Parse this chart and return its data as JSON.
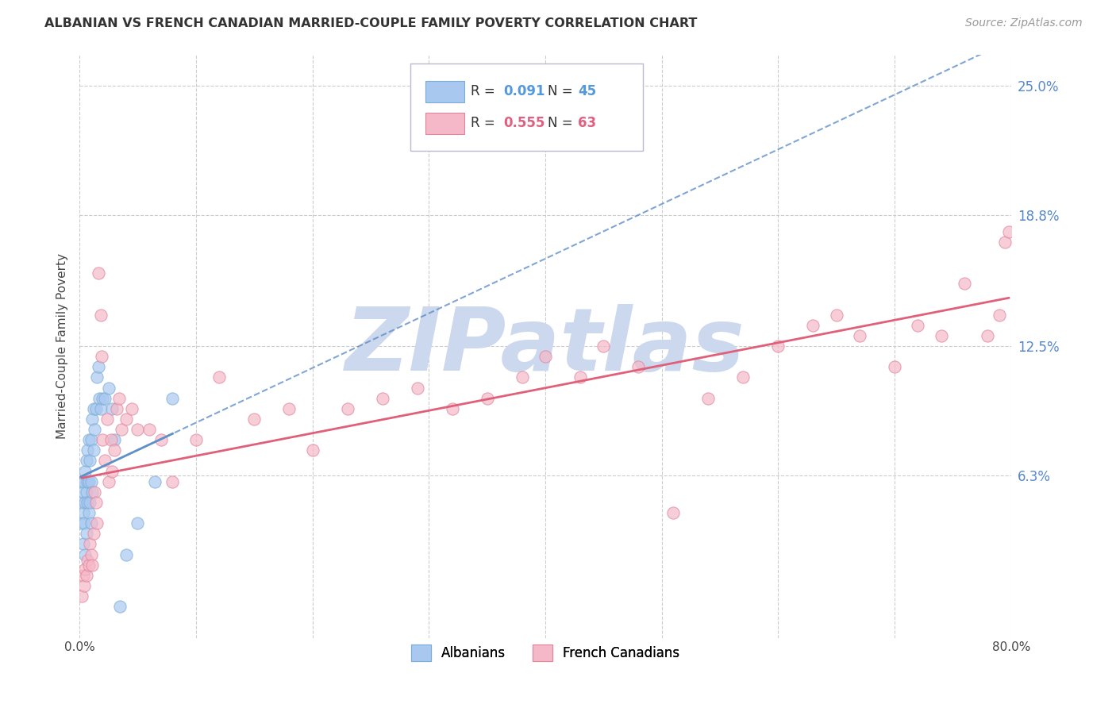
{
  "title": "ALBANIAN VS FRENCH CANADIAN MARRIED-COUPLE FAMILY POVERTY CORRELATION CHART",
  "source": "Source: ZipAtlas.com",
  "ylabel": "Married-Couple Family Poverty",
  "xlim": [
    0,
    0.8
  ],
  "ylim": [
    -0.015,
    0.265
  ],
  "yticks": [
    0.063,
    0.125,
    0.188,
    0.25
  ],
  "ytick_labels": [
    "6.3%",
    "12.5%",
    "18.8%",
    "25.0%"
  ],
  "xticks": [
    0.0,
    0.1,
    0.2,
    0.3,
    0.4,
    0.5,
    0.6,
    0.7,
    0.8
  ],
  "xtick_labels": [
    "0.0%",
    "",
    "",
    "",
    "",
    "",
    "",
    "",
    "80.0%"
  ],
  "albanian_color": "#a8c8f0",
  "albanian_edge": "#7badd4",
  "french_color": "#f5b8c8",
  "french_edge": "#e0849c",
  "albanian_line_color": "#6090c8",
  "french_line_color": "#e0607a",
  "albanian_R": 0.091,
  "albanian_N": 45,
  "french_R": 0.555,
  "french_N": 63,
  "watermark": "ZIPatlas",
  "watermark_color": "#ccd8ee",
  "legend_label_albanian": "Albanians",
  "legend_label_french": "French Canadians",
  "albanian_scatter_x": [
    0.001,
    0.002,
    0.002,
    0.003,
    0.003,
    0.003,
    0.004,
    0.004,
    0.005,
    0.005,
    0.005,
    0.006,
    0.006,
    0.006,
    0.007,
    0.007,
    0.007,
    0.008,
    0.008,
    0.008,
    0.009,
    0.009,
    0.01,
    0.01,
    0.01,
    0.011,
    0.011,
    0.012,
    0.012,
    0.013,
    0.014,
    0.015,
    0.016,
    0.017,
    0.018,
    0.02,
    0.022,
    0.025,
    0.028,
    0.03,
    0.035,
    0.04,
    0.05,
    0.065,
    0.08
  ],
  "albanian_scatter_y": [
    0.04,
    0.05,
    0.06,
    0.03,
    0.045,
    0.055,
    0.04,
    0.06,
    0.025,
    0.05,
    0.065,
    0.035,
    0.055,
    0.07,
    0.05,
    0.06,
    0.075,
    0.045,
    0.06,
    0.08,
    0.05,
    0.07,
    0.04,
    0.06,
    0.08,
    0.055,
    0.09,
    0.075,
    0.095,
    0.085,
    0.095,
    0.11,
    0.115,
    0.1,
    0.095,
    0.1,
    0.1,
    0.105,
    0.095,
    0.08,
    0.0,
    0.025,
    0.04,
    0.06,
    0.1
  ],
  "french_scatter_x": [
    0.002,
    0.003,
    0.004,
    0.005,
    0.006,
    0.007,
    0.008,
    0.009,
    0.01,
    0.011,
    0.012,
    0.013,
    0.014,
    0.015,
    0.016,
    0.018,
    0.019,
    0.02,
    0.022,
    0.024,
    0.025,
    0.027,
    0.028,
    0.03,
    0.032,
    0.034,
    0.036,
    0.04,
    0.045,
    0.05,
    0.06,
    0.07,
    0.08,
    0.1,
    0.12,
    0.15,
    0.18,
    0.2,
    0.23,
    0.26,
    0.29,
    0.32,
    0.35,
    0.38,
    0.4,
    0.43,
    0.45,
    0.48,
    0.51,
    0.54,
    0.57,
    0.6,
    0.63,
    0.65,
    0.67,
    0.7,
    0.72,
    0.74,
    0.76,
    0.78,
    0.79,
    0.795,
    0.798
  ],
  "french_scatter_y": [
    0.005,
    0.015,
    0.01,
    0.018,
    0.015,
    0.022,
    0.02,
    0.03,
    0.025,
    0.02,
    0.035,
    0.055,
    0.05,
    0.04,
    0.16,
    0.14,
    0.12,
    0.08,
    0.07,
    0.09,
    0.06,
    0.08,
    0.065,
    0.075,
    0.095,
    0.1,
    0.085,
    0.09,
    0.095,
    0.085,
    0.085,
    0.08,
    0.06,
    0.08,
    0.11,
    0.09,
    0.095,
    0.075,
    0.095,
    0.1,
    0.105,
    0.095,
    0.1,
    0.11,
    0.12,
    0.11,
    0.125,
    0.115,
    0.045,
    0.1,
    0.11,
    0.125,
    0.135,
    0.14,
    0.13,
    0.115,
    0.135,
    0.13,
    0.155,
    0.13,
    0.14,
    0.175,
    0.18
  ]
}
